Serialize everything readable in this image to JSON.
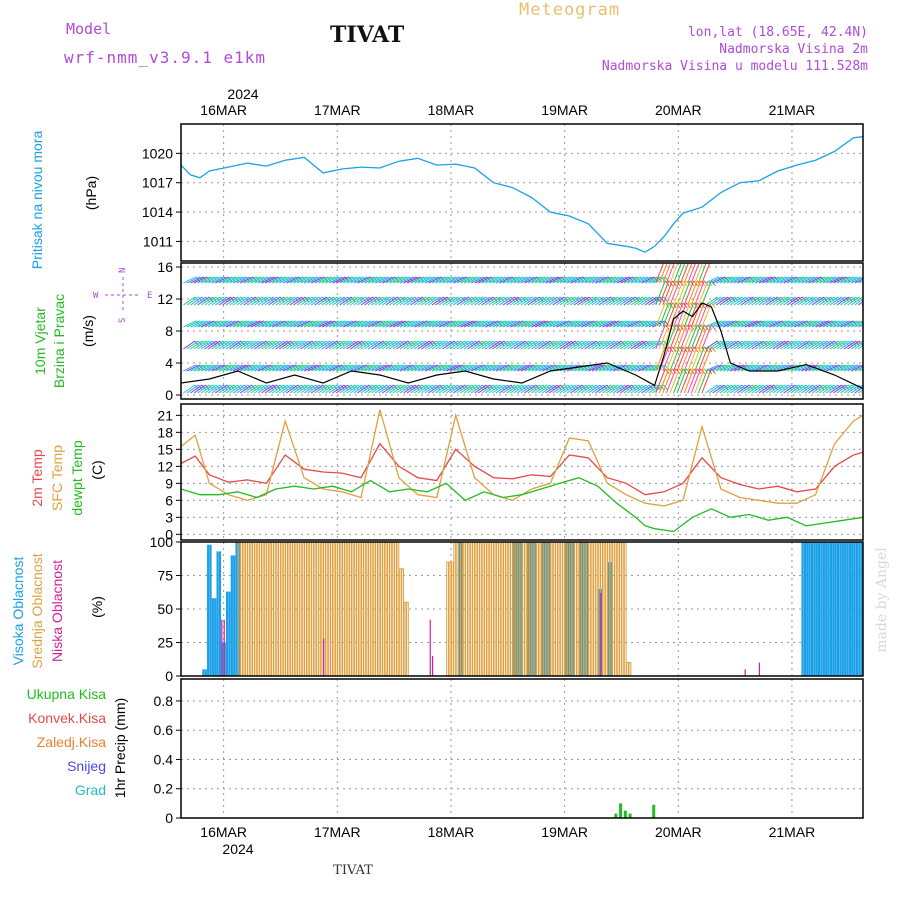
{
  "header": {
    "model_label": "Model",
    "model_name": "wrf-nmm_v3.9.1 e1km",
    "title": "TIVAT",
    "meteogram_label": "Meteogram",
    "lonlat": "lon,lat (18.65E, 42.4N)",
    "elevation": "Nadmorska Visina 2m",
    "model_elevation": "Nadmorska Visina u modelu 111.528m"
  },
  "footer": {
    "station": "TIVAT",
    "watermark": "made by Angel"
  },
  "colors": {
    "pressure": "#1aa0e8",
    "wind": "#22bb22",
    "temp2m": "#e84848",
    "sfc": "#e0a040",
    "dew": "#22bb22",
    "high_cloud": "#1aa0e8",
    "mid_cloud": "#e0a040",
    "low_cloud": "#d020a0",
    "total_precip": "#22bb22",
    "conv_precip": "#e84848",
    "freezing": "#e88030",
    "snow": "#4848e8",
    "hail": "#20c0c0"
  },
  "chart_data": [
    {
      "type": "line",
      "panel": "pressure",
      "ylabel": [
        "Pritisak na nivou mora",
        "(hPa)"
      ],
      "yticks": [
        1011,
        1014,
        1017,
        1020
      ],
      "ylim": [
        1009,
        1023
      ],
      "x_top_year": "2024",
      "x_top": [
        "16MAR",
        "17MAR",
        "18MAR",
        "19MAR",
        "20MAR",
        "21MAR"
      ],
      "x_range_hours": [
        0,
        144
      ],
      "series": [
        {
          "name": "pressure",
          "x": [
            0,
            2,
            4,
            6,
            10,
            14,
            18,
            22,
            26,
            30,
            34,
            38,
            42,
            46,
            50,
            54,
            58,
            62,
            66,
            70,
            74,
            78,
            82,
            86,
            90,
            94,
            96,
            98,
            100,
            102,
            104,
            106,
            110,
            114,
            118,
            122,
            126,
            130,
            134,
            138,
            142,
            144
          ],
          "values": [
            1018.8,
            1017.8,
            1017.5,
            1018.2,
            1018.6,
            1019.0,
            1018.7,
            1019.3,
            1019.6,
            1018.0,
            1018.4,
            1018.6,
            1018.5,
            1019.2,
            1019.5,
            1018.8,
            1018.9,
            1018.5,
            1017.0,
            1016.5,
            1015.5,
            1014.0,
            1013.6,
            1012.8,
            1010.8,
            1010.5,
            1010.3,
            1009.9,
            1010.5,
            1011.5,
            1012.8,
            1013.9,
            1014.5,
            1016.0,
            1017.0,
            1017.2,
            1018.2,
            1018.8,
            1019.3,
            1020.2,
            1021.6,
            1021.7
          ]
        }
      ]
    },
    {
      "type": "line",
      "panel": "wind",
      "ylabel": [
        "10m Vjetar",
        "Brzina i Pravac",
        "(m/s)"
      ],
      "compass": [
        "N",
        "E",
        "S",
        "W"
      ],
      "yticks": [
        0,
        4,
        8,
        12,
        16
      ],
      "ylim": [
        -0.5,
        16.5
      ],
      "series": [
        {
          "name": "wind speed",
          "x": [
            0,
            6,
            12,
            18,
            24,
            30,
            36,
            42,
            48,
            54,
            60,
            66,
            72,
            78,
            84,
            90,
            96,
            100,
            102,
            104,
            106,
            108,
            110,
            112,
            114,
            116,
            118,
            120,
            126,
            132,
            138,
            144
          ],
          "values": [
            1.5,
            2.0,
            3.0,
            1.5,
            2.5,
            1.5,
            3.0,
            2.5,
            1.5,
            2.5,
            3.0,
            2.0,
            1.5,
            3.0,
            3.5,
            4.0,
            2.5,
            1.2,
            5.0,
            9.5,
            10.5,
            9.8,
            11.5,
            11.0,
            8.0,
            4.0,
            3.5,
            3.0,
            3.0,
            3.8,
            2.5,
            0.8
          ]
        }
      ]
    },
    {
      "type": "line",
      "panel": "temperature",
      "ylabel": [
        "2m Temp",
        "SFC Temp",
        "dewpt Temp",
        "(C)"
      ],
      "yticks": [
        0,
        3,
        6,
        9,
        12,
        15,
        18,
        21
      ],
      "ylim": [
        -1,
        23
      ],
      "series": [
        {
          "name": "2m Temp",
          "x": [
            0,
            3,
            6,
            10,
            14,
            18,
            22,
            26,
            30,
            34,
            38,
            42,
            46,
            50,
            54,
            58,
            62,
            66,
            70,
            74,
            78,
            82,
            86,
            90,
            94,
            98,
            102,
            106,
            110,
            114,
            118,
            122,
            126,
            130,
            134,
            138,
            142,
            144
          ],
          "values": [
            12.5,
            13.8,
            10.5,
            9.2,
            9.6,
            9.0,
            14.0,
            11.5,
            11.0,
            10.8,
            10.0,
            16.0,
            12.0,
            10.0,
            9.5,
            15.0,
            12.0,
            10.0,
            9.8,
            10.5,
            10.2,
            14.0,
            13.5,
            10.0,
            9.0,
            7.0,
            7.5,
            9.0,
            13.5,
            10.0,
            8.8,
            8.0,
            8.5,
            7.5,
            8.0,
            12.0,
            14.0,
            14.5
          ]
        },
        {
          "name": "SFC Temp",
          "x": [
            0,
            3,
            6,
            10,
            14,
            18,
            22,
            26,
            30,
            34,
            38,
            42,
            46,
            50,
            54,
            58,
            62,
            66,
            70,
            74,
            78,
            82,
            86,
            90,
            94,
            98,
            102,
            106,
            110,
            114,
            118,
            122,
            126,
            130,
            134,
            138,
            142,
            144
          ],
          "values": [
            15.5,
            17.5,
            9.0,
            7.0,
            6.0,
            7.0,
            20.0,
            10.0,
            8.0,
            7.5,
            6.5,
            22.0,
            10.0,
            7.0,
            6.5,
            21.0,
            10.0,
            7.0,
            6.0,
            8.0,
            9.0,
            17.0,
            16.5,
            9.0,
            7.0,
            5.5,
            5.0,
            6.0,
            19.0,
            8.0,
            6.5,
            6.0,
            5.5,
            5.5,
            7.0,
            16.0,
            20.0,
            21.0
          ]
        },
        {
          "name": "dewpt Temp",
          "x": [
            0,
            4,
            8,
            12,
            16,
            20,
            24,
            28,
            32,
            36,
            40,
            44,
            48,
            52,
            56,
            60,
            64,
            68,
            72,
            76,
            80,
            84,
            88,
            92,
            96,
            98,
            100,
            104,
            108,
            112,
            116,
            120,
            124,
            128,
            132,
            136,
            140,
            144
          ],
          "values": [
            8.0,
            7.0,
            7.0,
            7.5,
            6.5,
            8.0,
            8.5,
            8.0,
            8.5,
            7.5,
            9.5,
            7.5,
            8.0,
            7.5,
            9.0,
            6.0,
            7.5,
            6.5,
            7.0,
            8.0,
            9.0,
            10.0,
            8.5,
            5.5,
            3.0,
            1.5,
            1.0,
            0.5,
            3.0,
            4.5,
            3.0,
            3.5,
            2.5,
            3.0,
            1.5,
            2.0,
            2.5,
            3.0
          ]
        }
      ]
    },
    {
      "type": "bar",
      "panel": "clouds",
      "ylabel": [
        "Visoka Oblacnost",
        "Srednja Oblacnost",
        "Niska Oblacnost",
        "(%)"
      ],
      "yticks": [
        0,
        25,
        50,
        75,
        100
      ],
      "ylim": [
        0,
        100
      ],
      "high_runs": [
        [
          4.5,
          5.5,
          5
        ],
        [
          5.5,
          6.5,
          98
        ],
        [
          6.5,
          7.5,
          58
        ],
        [
          7.5,
          8.5,
          93
        ],
        [
          8.5,
          9.5,
          25
        ],
        [
          9.5,
          10.5,
          63
        ],
        [
          10.5,
          11.5,
          90
        ],
        [
          11.5,
          12.5,
          100
        ],
        [
          58.5,
          59.5,
          100
        ],
        [
          70,
          72,
          100
        ],
        [
          73,
          75,
          100
        ],
        [
          76,
          78,
          100
        ],
        [
          81,
          83,
          100
        ],
        [
          84,
          86,
          100
        ],
        [
          88,
          89,
          65
        ],
        [
          90,
          91,
          85
        ],
        [
          131,
          144,
          100
        ]
      ],
      "mid_runs": [
        [
          12,
          46,
          100
        ],
        [
          46,
          47,
          80
        ],
        [
          47,
          48,
          55
        ],
        [
          56,
          57.5,
          85
        ],
        [
          57.5,
          94,
          100
        ],
        [
          94,
          95,
          10
        ]
      ],
      "low_runs": [
        [
          8.5,
          9.5,
          42
        ],
        [
          30,
          30.5,
          28
        ],
        [
          52.5,
          53,
          42
        ],
        [
          53,
          53.5,
          15
        ],
        [
          88.5,
          89,
          62
        ],
        [
          119,
          119.5,
          5
        ],
        [
          122,
          122.5,
          10
        ]
      ]
    },
    {
      "type": "bar",
      "panel": "precip",
      "ylabel": [
        "1hr Precip (mm)"
      ],
      "legend": [
        "Ukupna Kisa",
        "Konvek.Kisa",
        "Zaledj.Kisa",
        "Snijeg",
        "Grad"
      ],
      "yticks": [
        0,
        0.2,
        0.4,
        0.6,
        0.8
      ],
      "ylim": [
        0,
        0.95
      ],
      "x_bottom": [
        "16MAR",
        "17MAR",
        "18MAR",
        "19MAR",
        "20MAR",
        "21MAR"
      ],
      "x_bottom_year": "2024",
      "bars": [
        [
          91.5,
          0.03
        ],
        [
          92.5,
          0.1
        ],
        [
          93.5,
          0.05
        ],
        [
          94.5,
          0.03
        ],
        [
          99.5,
          0.09
        ]
      ]
    }
  ]
}
